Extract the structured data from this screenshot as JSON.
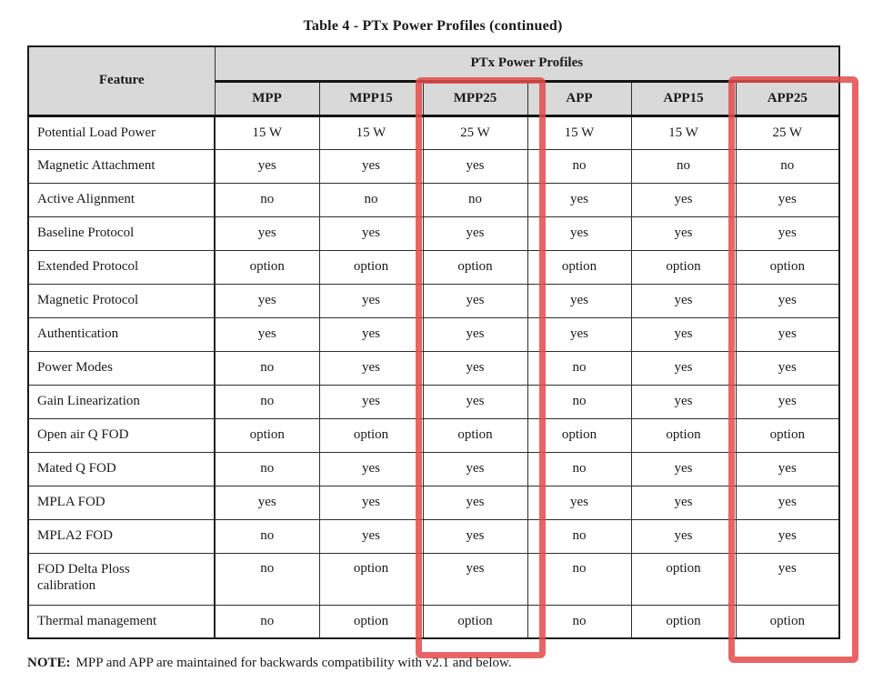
{
  "title": "Table 4 - PTx Power Profiles (continued)",
  "table": {
    "feature_header": "Feature",
    "group_header": "PTx Power Profiles",
    "columns": [
      "MPP",
      "MPP15",
      "MPP25",
      "APP",
      "APP15",
      "APP25"
    ],
    "highlighted_columns": [
      "MPP25",
      "APP25"
    ],
    "rows": [
      {
        "feature": "Potential Load Power",
        "values": [
          "15 W",
          "15 W",
          "25 W",
          "15 W",
          "15 W",
          "25 W"
        ]
      },
      {
        "feature": "Magnetic Attachment",
        "values": [
          "yes",
          "yes",
          "yes",
          "no",
          "no",
          "no"
        ]
      },
      {
        "feature": "Active Alignment",
        "values": [
          "no",
          "no",
          "no",
          "yes",
          "yes",
          "yes"
        ]
      },
      {
        "feature": "Baseline Protocol",
        "values": [
          "yes",
          "yes",
          "yes",
          "yes",
          "yes",
          "yes"
        ]
      },
      {
        "feature": "Extended Protocol",
        "values": [
          "option",
          "option",
          "option",
          "option",
          "option",
          "option"
        ]
      },
      {
        "feature": "Magnetic Protocol",
        "values": [
          "yes",
          "yes",
          "yes",
          "yes",
          "yes",
          "yes"
        ]
      },
      {
        "feature": "Authentication",
        "values": [
          "yes",
          "yes",
          "yes",
          "yes",
          "yes",
          "yes"
        ]
      },
      {
        "feature": "Power Modes",
        "values": [
          "no",
          "yes",
          "yes",
          "no",
          "yes",
          "yes"
        ]
      },
      {
        "feature": "Gain Linearization",
        "values": [
          "no",
          "yes",
          "yes",
          "no",
          "yes",
          "yes"
        ]
      },
      {
        "feature": "Open air Q FOD",
        "values": [
          "option",
          "option",
          "option",
          "option",
          "option",
          "option"
        ]
      },
      {
        "feature": "Mated Q FOD",
        "values": [
          "no",
          "yes",
          "yes",
          "no",
          "yes",
          "yes"
        ]
      },
      {
        "feature": "MPLA FOD",
        "values": [
          "yes",
          "yes",
          "yes",
          "yes",
          "yes",
          "yes"
        ]
      },
      {
        "feature": "MPLA2 FOD",
        "values": [
          "no",
          "yes",
          "yes",
          "no",
          "yes",
          "yes"
        ]
      },
      {
        "feature": "FOD Delta Ploss calibration",
        "values": [
          "no",
          "option",
          "yes",
          "no",
          "option",
          "yes"
        ]
      },
      {
        "feature": "Thermal management",
        "values": [
          "no",
          "option",
          "option",
          "no",
          "option",
          "option"
        ]
      }
    ]
  },
  "note": {
    "label": "NOTE:",
    "text": "MPP and APP are maintained for backwards compatibility with v2.1 and below."
  },
  "colors": {
    "header_bg": "#d9d9d9",
    "highlight_red": "#e44a4a",
    "border_dark": "#1a1a1a"
  }
}
